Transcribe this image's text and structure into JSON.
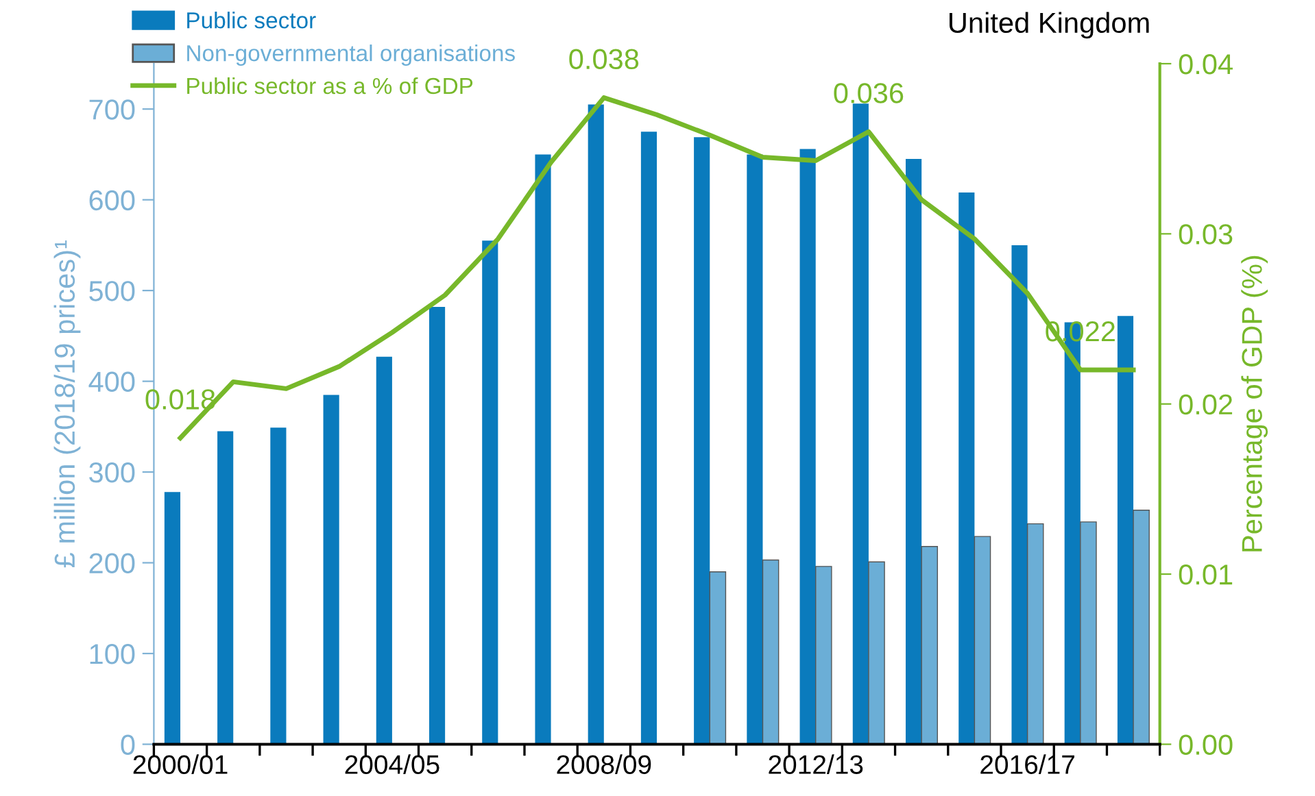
{
  "chart_data": {
    "type": "bar",
    "title": "United Kingdom",
    "ylabel": "£ million (2018/19 prices)¹",
    "y2label": "Percentage of GDP (%)",
    "categories": [
      "2000/01",
      null,
      null,
      null,
      "2004/05",
      null,
      null,
      null,
      "2008/09",
      null,
      null,
      null,
      "2012/13",
      null,
      null,
      null,
      "2016/17",
      null,
      null
    ],
    "series": [
      {
        "name": "Public sector",
        "color": "#0a7bbd",
        "values": [
          278,
          345,
          349,
          385,
          427,
          482,
          555,
          650,
          705,
          675,
          669,
          650,
          656,
          706,
          645,
          608,
          550,
          465,
          472
        ]
      },
      {
        "name": "Non-governmental organisations",
        "color": "#6baed6",
        "values": [
          null,
          null,
          null,
          null,
          null,
          null,
          null,
          null,
          null,
          null,
          190,
          203,
          196,
          201,
          218,
          229,
          243,
          245,
          258
        ]
      },
      {
        "name": "Public sector as a % of GDP",
        "type": "line",
        "axis": "y2",
        "color": "#77b82a",
        "values": [
          0.018,
          0.0213,
          0.0209,
          0.0222,
          0.0242,
          0.0264,
          0.0297,
          0.0342,
          0.038,
          0.037,
          0.0358,
          0.0345,
          0.0343,
          0.036,
          0.032,
          0.0297,
          0.0265,
          0.022,
          0.022
        ],
        "value_labels": [
          "0.018",
          null,
          null,
          null,
          null,
          null,
          null,
          null,
          "0.038",
          null,
          null,
          null,
          null,
          "0.036",
          null,
          null,
          null,
          "0.022",
          null
        ]
      }
    ],
    "ylim": [
      0,
      750
    ],
    "yticks": [
      0,
      100,
      200,
      300,
      400,
      500,
      600,
      700
    ],
    "y2lim": [
      0,
      0.04
    ],
    "y2ticks": [
      {
        "value": 0,
        "label": "0.00"
      },
      0.01,
      0.02,
      0.03,
      0.04
    ],
    "legend": "top left",
    "grid": false
  }
}
